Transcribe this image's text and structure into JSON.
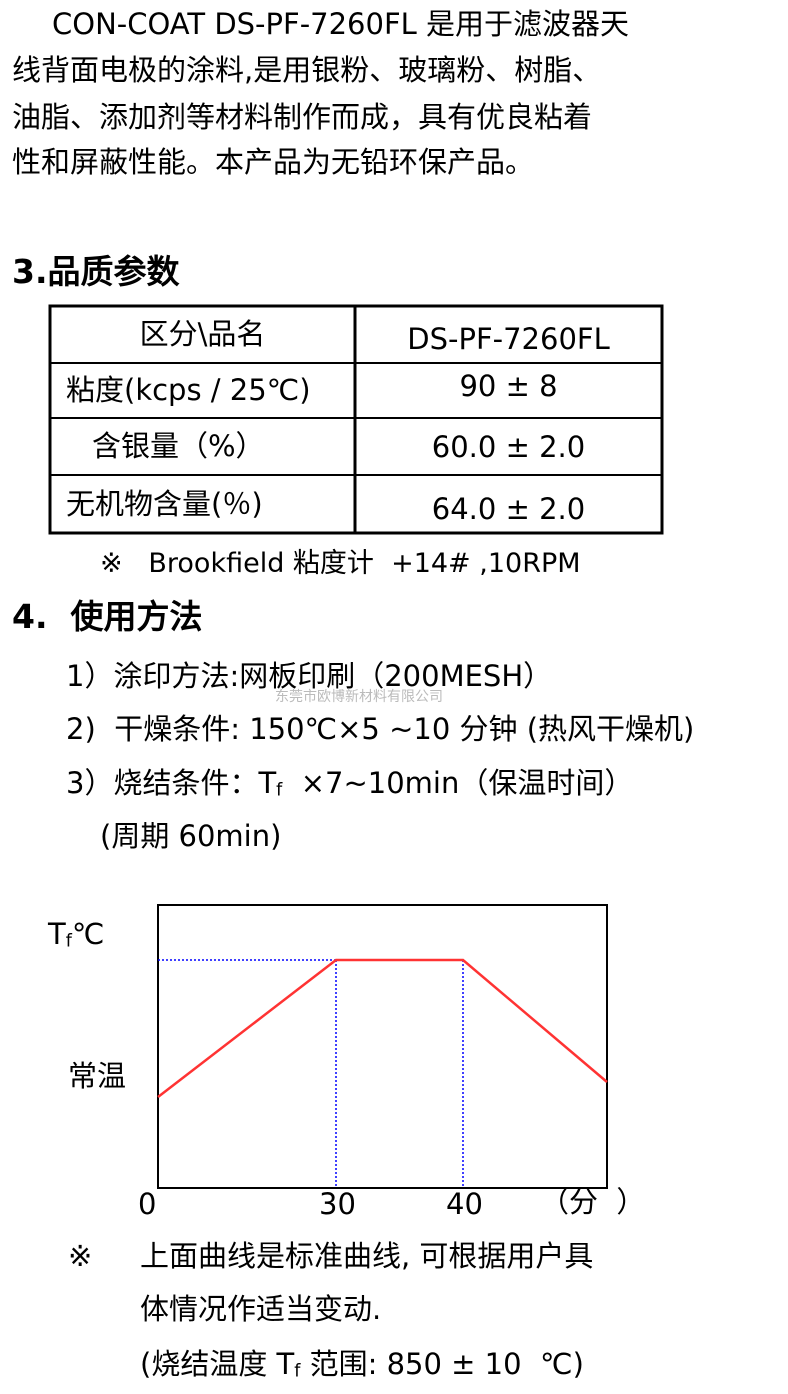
{
  "intro": {
    "lines": [
      "CON-COAT DS-PF-7260FL 是用于滤波器天",
      "线背面电极的涂料,是用银粉、玻璃粉、树脂、",
      "油脂、添加剂等材料制作而成，具有优良粘着",
      "性和屏蔽性能。本产品为无铅环保产品。"
    ]
  },
  "section3": {
    "title": "3.品质参数",
    "table": {
      "header": [
        "区分\\品名",
        "DS-PF-7260FL"
      ],
      "rows": [
        [
          "粘度(kcps / 25℃)",
          "90 ± 8"
        ],
        [
          "含银量（%）",
          "60.0 ± 2.0"
        ],
        [
          "无机物含量(％)",
          "64.0 ± 2.0"
        ]
      ]
    },
    "note": "※   Brookfield 粘度计  +14# ,10RPM"
  },
  "section4": {
    "title": "4.  使用方法",
    "items": [
      "1）涂印方法:网板印刷（200MESH）",
      "2)  干燥条件: 150℃×5 ~10 分钟 (热风干燥机)"
    ],
    "item3": {
      "prefix": "3）烧结条件：T",
      "sub": "f",
      "suffix": "  ×7~10min（保温时间）"
    },
    "item3_cont": "(周期 60min)",
    "watermark": "东莞市欧博新材料有限公司"
  },
  "diagram": {
    "y_top_label": {
      "main": "T",
      "sub": "f",
      "unit": "℃"
    },
    "y_bottom_label": "常温",
    "x_labels": [
      "0",
      "30",
      "40",
      "（分  ）"
    ]
  },
  "notes": {
    "mark": "※",
    "lines": [
      "上面曲线是标准曲线, 可根据用户具",
      "体情况作适当变动."
    ],
    "range": {
      "prefix": "(烧结温度 T",
      "sub": "f",
      "suffix": " 范围: 850 ± 10  ℃)"
    }
  }
}
